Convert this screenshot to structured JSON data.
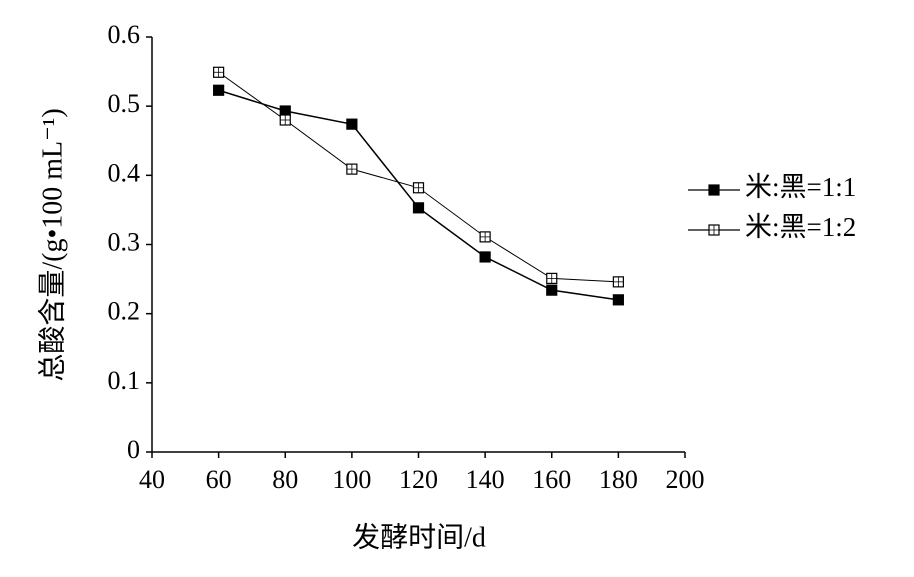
{
  "chart_data": {
    "type": "line",
    "y_label": "总酸含量/(g•100 mL⁻¹)",
    "x_label": "发酵时间/d",
    "x": [
      60,
      80,
      100,
      120,
      140,
      160,
      180
    ],
    "series": [
      {
        "name": "米:黑=1:1",
        "color": "#000000",
        "marker": "filled",
        "values": [
          0.523,
          0.493,
          0.474,
          0.353,
          0.282,
          0.234,
          0.22
        ]
      },
      {
        "name": "米:黑=1:2",
        "color": "#000000",
        "marker": "open",
        "values": [
          0.549,
          0.48,
          0.409,
          0.382,
          0.311,
          0.251,
          0.246
        ]
      }
    ],
    "xlim": [
      40,
      200
    ],
    "xticks": [
      40,
      60,
      80,
      100,
      120,
      140,
      160,
      180,
      200
    ],
    "ylim": [
      0,
      0.6
    ],
    "yticks": [
      0,
      0.1,
      0.2,
      0.3,
      0.4,
      0.5,
      0.6
    ],
    "grid": false,
    "legend": "right"
  }
}
